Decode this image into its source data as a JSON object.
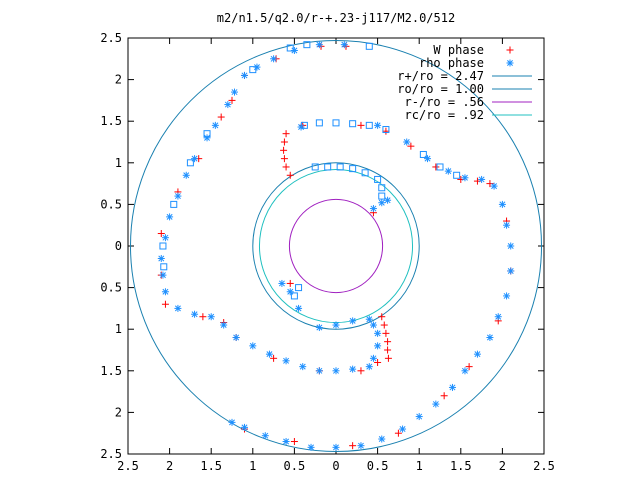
{
  "chart_data": {
    "type": "scatter",
    "title": "m2/n1.5/q2.0/r-+.23-j117/M2.0/512",
    "xlim": [
      -2.5,
      2.5
    ],
    "ylim": [
      -2.5,
      2.5
    ],
    "xticks": [
      -2.5,
      -2,
      -1.5,
      -1,
      -0.5,
      0,
      0.5,
      1,
      1.5,
      2,
      2.5
    ],
    "xtick_labels": [
      "2.5",
      "2",
      "1.5",
      "1",
      "0.5",
      "0",
      "0.5",
      "1",
      "1.5",
      "2",
      "2.5"
    ],
    "yticks": [
      2.5,
      2,
      1.5,
      1,
      0.5,
      0,
      -0.5,
      -1,
      -1.5,
      -2,
      -2.5
    ],
    "ytick_labels": [
      "2.5",
      "2",
      "1.5",
      "1",
      "0.5",
      "0",
      "0.5",
      "1",
      "1.5",
      "2",
      "2.5"
    ],
    "grid": false,
    "legend_position": "top-right",
    "legend": [
      {
        "label": "W phase",
        "marker": "plus",
        "color": "#ff0000"
      },
      {
        "label": "rho phase",
        "marker": "star",
        "color": "#1e90ff"
      },
      {
        "label": "r+/ro = 2.47",
        "marker": "line",
        "color": "#1a80b0"
      },
      {
        "label": "ro/ro = 1.00",
        "marker": "line",
        "color": "#1a80b0"
      },
      {
        "label": "r-/ro =  .56",
        "marker": "line",
        "color": "#a020c0"
      },
      {
        "label": "rc/ro =  .92",
        "marker": "line",
        "color": "#20c0c0"
      }
    ],
    "circles": [
      {
        "name": "r+/ro",
        "r": 2.47,
        "color": "#1a80b0"
      },
      {
        "name": "ro/ro",
        "r": 1.0,
        "color": "#1a80b0"
      },
      {
        "name": "r-/ro",
        "r": 0.56,
        "color": "#a020c0"
      },
      {
        "name": "rc/ro",
        "r": 0.92,
        "color": "#20c0c0"
      }
    ],
    "series_colors": {
      "w": "#ff0000",
      "rho": "#1e90ff",
      "rho_square": "#1e90ff"
    },
    "series": [
      {
        "name": "W phase",
        "marker": "plus",
        "color": "#ff0000",
        "points": [
          [
            -0.18,
            2.4
          ],
          [
            0.12,
            2.4
          ],
          [
            -0.72,
            2.25
          ],
          [
            -1.1,
            2.05
          ],
          [
            -1.25,
            1.75
          ],
          [
            -1.38,
            1.55
          ],
          [
            -1.65,
            1.05
          ],
          [
            -1.9,
            0.65
          ],
          [
            -2.1,
            0.15
          ],
          [
            -2.1,
            -0.35
          ],
          [
            -2.05,
            -0.7
          ],
          [
            -1.6,
            -0.85
          ],
          [
            -1.35,
            -0.92
          ],
          [
            -1.2,
            -1.1
          ],
          [
            -0.75,
            -1.35
          ],
          [
            -0.2,
            -1.5
          ],
          [
            0.3,
            -1.5
          ],
          [
            0.5,
            -1.4
          ],
          [
            0.55,
            -0.85
          ],
          [
            0.58,
            -0.95
          ],
          [
            0.6,
            -1.05
          ],
          [
            0.62,
            -1.15
          ],
          [
            0.62,
            -1.25
          ],
          [
            0.63,
            -1.35
          ],
          [
            -0.6,
            1.35
          ],
          [
            -0.62,
            1.25
          ],
          [
            -0.63,
            1.15
          ],
          [
            -0.62,
            1.05
          ],
          [
            -0.6,
            0.95
          ],
          [
            -0.55,
            0.85
          ],
          [
            -0.4,
            1.45
          ],
          [
            0.3,
            1.45
          ],
          [
            0.6,
            1.38
          ],
          [
            0.9,
            1.2
          ],
          [
            1.2,
            0.95
          ],
          [
            1.5,
            0.8
          ],
          [
            1.7,
            0.78
          ],
          [
            1.85,
            0.75
          ],
          [
            2.05,
            0.3
          ],
          [
            2.1,
            -0.3
          ],
          [
            1.95,
            -0.9
          ],
          [
            1.6,
            -1.45
          ],
          [
            1.3,
            -1.8
          ],
          [
            0.75,
            -2.25
          ],
          [
            0.2,
            -2.4
          ],
          [
            -0.5,
            -2.35
          ],
          [
            -1.1,
            -2.2
          ],
          [
            0.45,
            0.4
          ],
          [
            -0.55,
            -0.45
          ]
        ]
      },
      {
        "name": "rho phase",
        "marker": "star",
        "color": "#1e90ff",
        "points": [
          [
            -0.2,
            2.42
          ],
          [
            0.1,
            2.42
          ],
          [
            -0.5,
            2.35
          ],
          [
            -0.75,
            2.25
          ],
          [
            -0.95,
            2.15
          ],
          [
            -1.1,
            2.05
          ],
          [
            -1.22,
            1.85
          ],
          [
            -1.3,
            1.7
          ],
          [
            -1.45,
            1.45
          ],
          [
            -1.55,
            1.3
          ],
          [
            -1.7,
            1.05
          ],
          [
            -1.8,
            0.85
          ],
          [
            -1.9,
            0.6
          ],
          [
            -2.0,
            0.35
          ],
          [
            -2.05,
            0.1
          ],
          [
            -2.1,
            -0.15
          ],
          [
            -2.08,
            -0.35
          ],
          [
            -2.05,
            -0.55
          ],
          [
            -1.9,
            -0.75
          ],
          [
            -1.7,
            -0.82
          ],
          [
            -1.5,
            -0.85
          ],
          [
            -1.35,
            -0.95
          ],
          [
            -1.2,
            -1.1
          ],
          [
            -1.0,
            -1.2
          ],
          [
            -0.8,
            -1.3
          ],
          [
            -0.6,
            -1.38
          ],
          [
            -0.4,
            -1.45
          ],
          [
            -0.2,
            -1.5
          ],
          [
            0.0,
            -1.5
          ],
          [
            0.2,
            -1.48
          ],
          [
            0.4,
            -1.45
          ],
          [
            0.45,
            -1.35
          ],
          [
            0.5,
            -1.2
          ],
          [
            0.5,
            -1.05
          ],
          [
            0.45,
            -0.95
          ],
          [
            0.4,
            -0.88
          ],
          [
            0.2,
            -0.9
          ],
          [
            0.0,
            -0.95
          ],
          [
            -0.2,
            -0.98
          ],
          [
            -0.45,
            -0.75
          ],
          [
            -0.55,
            -0.55
          ],
          [
            -0.65,
            -0.45
          ],
          [
            0.45,
            0.45
          ],
          [
            0.55,
            0.52
          ],
          [
            0.62,
            0.55
          ],
          [
            -0.42,
            1.43
          ],
          [
            0.5,
            1.45
          ],
          [
            0.85,
            1.25
          ],
          [
            1.1,
            1.05
          ],
          [
            1.35,
            0.9
          ],
          [
            1.55,
            0.82
          ],
          [
            1.75,
            0.8
          ],
          [
            1.9,
            0.72
          ],
          [
            2.0,
            0.5
          ],
          [
            2.05,
            0.25
          ],
          [
            2.1,
            0.0
          ],
          [
            2.1,
            -0.3
          ],
          [
            2.05,
            -0.6
          ],
          [
            1.95,
            -0.85
          ],
          [
            1.85,
            -1.1
          ],
          [
            1.7,
            -1.3
          ],
          [
            1.55,
            -1.5
          ],
          [
            1.4,
            -1.7
          ],
          [
            1.2,
            -1.9
          ],
          [
            1.0,
            -2.05
          ],
          [
            0.8,
            -2.2
          ],
          [
            0.55,
            -2.32
          ],
          [
            0.3,
            -2.4
          ],
          [
            0.0,
            -2.42
          ],
          [
            -0.3,
            -2.42
          ],
          [
            -0.6,
            -2.35
          ],
          [
            -0.85,
            -2.28
          ],
          [
            -1.1,
            -2.18
          ],
          [
            -1.25,
            -2.12
          ]
        ]
      },
      {
        "name": "rho phase (square markers)",
        "marker": "square",
        "color": "#1e90ff",
        "points": [
          [
            -0.55,
            2.38
          ],
          [
            -0.35,
            2.42
          ],
          [
            0.4,
            2.4
          ],
          [
            -1.0,
            2.12
          ],
          [
            -1.55,
            1.35
          ],
          [
            -1.75,
            1.0
          ],
          [
            -1.95,
            0.5
          ],
          [
            -2.08,
            0.0
          ],
          [
            -2.07,
            -0.25
          ],
          [
            -0.38,
            1.45
          ],
          [
            -0.2,
            1.48
          ],
          [
            0.0,
            1.48
          ],
          [
            0.2,
            1.47
          ],
          [
            0.4,
            1.45
          ],
          [
            0.6,
            1.4
          ],
          [
            -0.25,
            0.95
          ],
          [
            -0.1,
            0.95
          ],
          [
            0.05,
            0.95
          ],
          [
            0.2,
            0.93
          ],
          [
            0.35,
            0.88
          ],
          [
            0.5,
            0.8
          ],
          [
            0.55,
            0.7
          ],
          [
            0.55,
            0.6
          ],
          [
            -0.45,
            -0.5
          ],
          [
            -0.5,
            -0.6
          ],
          [
            1.05,
            1.1
          ],
          [
            1.25,
            0.95
          ],
          [
            1.45,
            0.85
          ]
        ]
      }
    ]
  }
}
